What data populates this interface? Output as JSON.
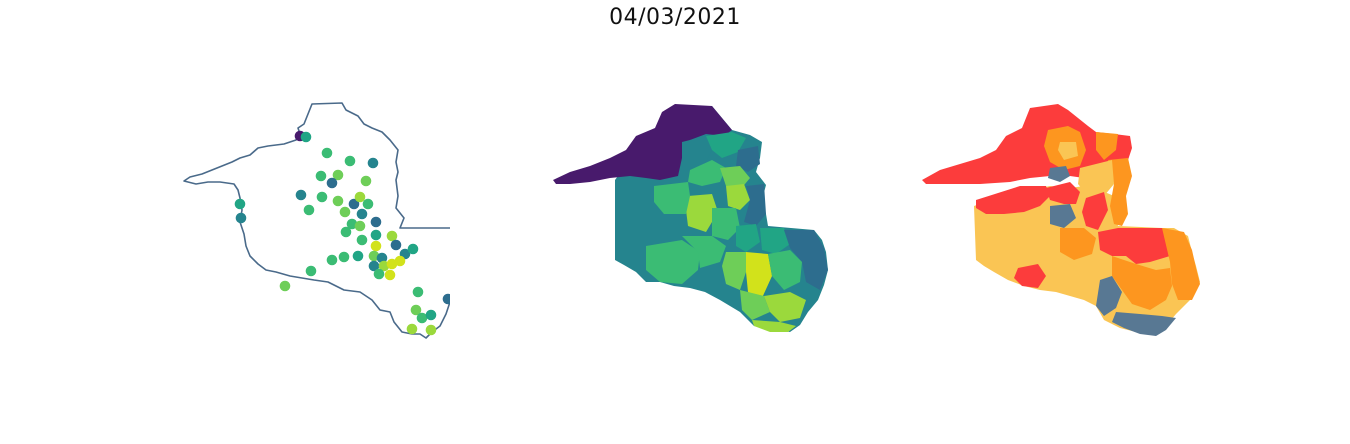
{
  "title": "04/03/2021",
  "panels": [
    {
      "name": "points",
      "outline_color": "#4a6a8a"
    },
    {
      "name": "viridis",
      "colors": [
        "#481a6c",
        "#2d6d8e",
        "#25848e",
        "#21a585",
        "#3bbc74",
        "#6ece58",
        "#9bd93c",
        "#d2e21b"
      ]
    },
    {
      "name": "risk",
      "colors": [
        "#fc3c3c",
        "#fd961f",
        "#fac554",
        "#587893"
      ]
    }
  ]
}
